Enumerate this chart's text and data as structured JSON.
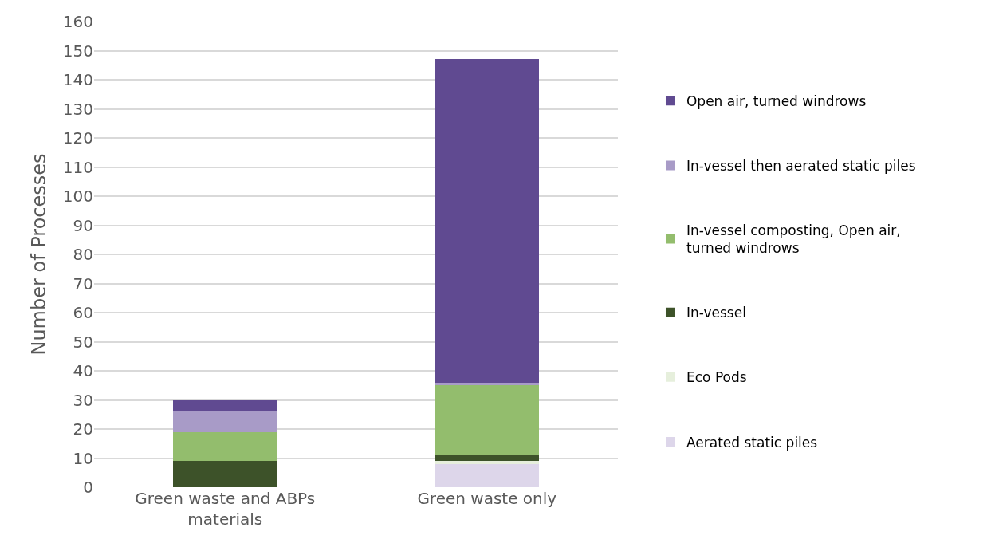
{
  "chart_data": {
    "type": "bar",
    "stacked": true,
    "ylabel": "Number of Processes",
    "categories": [
      "Green waste and ABPs materials",
      "Green waste only"
    ],
    "series": [
      {
        "name": "Aerated static piles",
        "color": "#ddd6ea",
        "values": [
          0,
          8
        ]
      },
      {
        "name": "Eco Pods",
        "color": "#e6efdc",
        "values": [
          0,
          1
        ]
      },
      {
        "name": "In-vessel",
        "color": "#3d5229",
        "values": [
          9,
          2
        ]
      },
      {
        "name": "In-vessel composting, Open air, turned windrows",
        "color": "#93bd6d",
        "values": [
          10,
          24
        ]
      },
      {
        "name": "In-vessel then aerated static piles",
        "color": "#a89bc7",
        "values": [
          7,
          1
        ]
      },
      {
        "name": "Open air, turned windrows",
        "color": "#604a91",
        "values": [
          4,
          111
        ]
      }
    ],
    "ylim": [
      0,
      160
    ],
    "yticks": [
      0,
      10,
      20,
      30,
      40,
      50,
      60,
      70,
      80,
      90,
      100,
      110,
      120,
      130,
      140,
      150,
      160
    ],
    "grid": "y",
    "legend": "right"
  }
}
